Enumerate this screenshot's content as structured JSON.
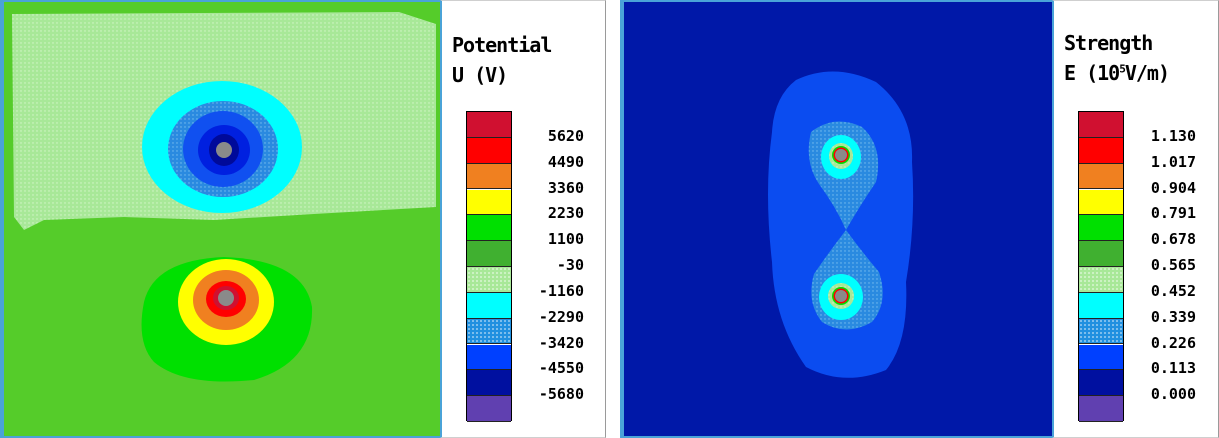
{
  "potential_panel": {
    "legend_title_line1": "Potential",
    "legend_title_line2": "U (V)",
    "levels": [
      "5620",
      "4490",
      "3360",
      "2230",
      "1100",
      "-30",
      "-1160",
      "-2290",
      "-3420",
      "-4550",
      "-5680"
    ],
    "colors": [
      "#d01030",
      "#ff0000",
      "#f08020",
      "#ffff00",
      "#00e000",
      "#40b030",
      "#a8e898",
      "#00ffff",
      "#2090e0",
      "#0040ff",
      "#0010a0",
      "#6040b0"
    ]
  },
  "strength_panel": {
    "legend_title_line1": "Strength",
    "legend_title_prefix": "E (10",
    "legend_title_sup": "5",
    "legend_title_suffix": "V/m)",
    "levels": [
      "1.130",
      "1.017",
      "0.904",
      "0.791",
      "0.678",
      "0.565",
      "0.452",
      "0.339",
      "0.226",
      "0.113",
      "0.000"
    ],
    "colors": [
      "#d01030",
      "#ff0000",
      "#f08020",
      "#ffff00",
      "#00e000",
      "#40b030",
      "#a8e898",
      "#00ffff",
      "#2090e0",
      "#0040ff",
      "#0010a0",
      "#6040b0"
    ]
  }
}
